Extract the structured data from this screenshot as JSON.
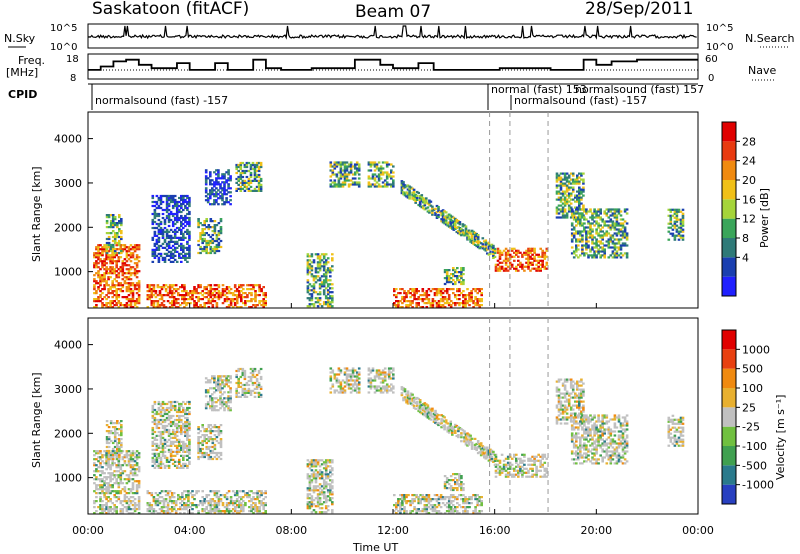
{
  "header": {
    "title": "Saskatoon (fitACF)",
    "beam": "Beam 07",
    "date": "28/Sep/2011"
  },
  "top_panels": {
    "nsky_label": "N.Sky",
    "nsky_ticks": [
      "10^5",
      "10^0"
    ],
    "nsearch_ticks": [
      "10^5",
      "10^0"
    ],
    "nsearch_label": "N.Search",
    "freq_label": "Freq.",
    "freq_unit": "[MHz]",
    "freq_ticks": [
      "18",
      "8"
    ],
    "nave_ticks": [
      "60",
      "0"
    ],
    "nave_label": "Nave",
    "cpid_label": "CPID",
    "cpid_texts": [
      "normalsound (fast) -157",
      "normal (fast) 153",
      "normalsound (fast) -157",
      "normalsound (fast) 157"
    ],
    "freq_steps": [
      [
        0.0,
        11
      ],
      [
        0.5,
        13
      ],
      [
        1.0,
        16
      ],
      [
        1.5,
        17
      ],
      [
        2.0,
        14
      ],
      [
        2.5,
        12
      ],
      [
        3.5,
        15
      ],
      [
        4.0,
        11
      ],
      [
        5.0,
        15
      ],
      [
        5.5,
        11
      ],
      [
        6.5,
        17
      ],
      [
        7.0,
        12
      ],
      [
        7.6,
        11
      ],
      [
        8.8,
        12
      ],
      [
        10.5,
        17
      ],
      [
        11.5,
        14
      ],
      [
        12.0,
        12
      ],
      [
        13.0,
        15
      ],
      [
        13.6,
        11
      ],
      [
        16.2,
        12
      ],
      [
        18.2,
        11
      ],
      [
        19.5,
        17
      ],
      [
        20.0,
        14
      ],
      [
        20.6,
        16
      ],
      [
        21.6,
        17
      ]
    ]
  },
  "panels": [
    {
      "name": "power",
      "ylabel": "Slant Range [km]"
    },
    {
      "name": "velocity",
      "ylabel": "Slant Range [km]"
    }
  ],
  "colorbars": {
    "power": {
      "label": "Power [dB]",
      "ticks": [
        "28",
        "24",
        "20",
        "16",
        "12",
        "8",
        "4"
      ],
      "colors": [
        "#2020ff",
        "#1a3fb0",
        "#2f7a78",
        "#3aa55a",
        "#a5d43a",
        "#f0c018",
        "#f08a10",
        "#e83a10",
        "#e00000"
      ]
    },
    "velocity": {
      "label": "Velocity [m s⁻¹]",
      "ticks": [
        "1000",
        "500",
        "100",
        "25",
        "-25",
        "-100",
        "-500",
        "-1000"
      ],
      "colors": [
        "#2840c0",
        "#2a7a8c",
        "#40a050",
        "#70c040",
        "#c0c0c0",
        "#e8b030",
        "#f08a10",
        "#e84010",
        "#e00000"
      ]
    }
  },
  "chart_data": {
    "type": "heatmap",
    "xlabel": "Time UT",
    "x_ticks": [
      "00:00",
      "04:00",
      "08:00",
      "12:00",
      "16:00",
      "20:00",
      "00:00"
    ],
    "x_range_hours": [
      0,
      24
    ],
    "ylabel": "Slant Range [km]",
    "y_range_km": [
      180,
      4600
    ],
    "y_ticks": [
      1000,
      2000,
      3000,
      4000
    ],
    "dashed_times_hours": [
      15.8,
      16.6,
      18.1
    ],
    "echo_regions": [
      {
        "t0": 0.2,
        "t1": 2.0,
        "r0": 180,
        "r1": 1600,
        "kind": "strong"
      },
      {
        "t0": 0.7,
        "t1": 1.3,
        "r0": 1400,
        "r1": 2300,
        "kind": "medium"
      },
      {
        "t0": 2.3,
        "t1": 7.0,
        "r0": 180,
        "r1": 700,
        "kind": "strong"
      },
      {
        "t0": 2.5,
        "t1": 4.0,
        "r0": 1200,
        "r1": 2700,
        "kind": "weak"
      },
      {
        "t0": 4.3,
        "t1": 5.2,
        "r0": 1400,
        "r1": 2200,
        "kind": "medium"
      },
      {
        "t0": 4.6,
        "t1": 5.6,
        "r0": 2500,
        "r1": 3300,
        "kind": "weak"
      },
      {
        "t0": 5.8,
        "t1": 6.8,
        "r0": 2800,
        "r1": 3450,
        "kind": "medium"
      },
      {
        "t0": 8.6,
        "t1": 9.6,
        "r0": 200,
        "r1": 1400,
        "kind": "medium"
      },
      {
        "t0": 9.5,
        "t1": 10.7,
        "r0": 2900,
        "r1": 3450,
        "kind": "medium"
      },
      {
        "t0": 11.0,
        "t1": 12.0,
        "r0": 2900,
        "r1": 3450,
        "kind": "medium"
      },
      {
        "t0": 12.0,
        "t1": 15.5,
        "r0": 180,
        "r1": 600,
        "kind": "strong"
      },
      {
        "t0": 14.0,
        "t1": 14.8,
        "r0": 700,
        "r1": 1100,
        "kind": "medium"
      },
      {
        "t0": 16.0,
        "t1": 18.0,
        "r0": 1000,
        "r1": 1500,
        "kind": "strong"
      },
      {
        "t0": 18.4,
        "t1": 19.5,
        "r0": 2200,
        "r1": 3200,
        "kind": "medium"
      },
      {
        "t0": 19.0,
        "t1": 21.2,
        "r0": 1300,
        "r1": 2400,
        "kind": "medium"
      },
      {
        "t0": 22.8,
        "t1": 23.4,
        "r0": 1700,
        "r1": 2400,
        "kind": "medium"
      }
    ],
    "arc": {
      "t0": 12.3,
      "t1": 16.0,
      "r_start": 2900,
      "r_end": 1400
    }
  }
}
